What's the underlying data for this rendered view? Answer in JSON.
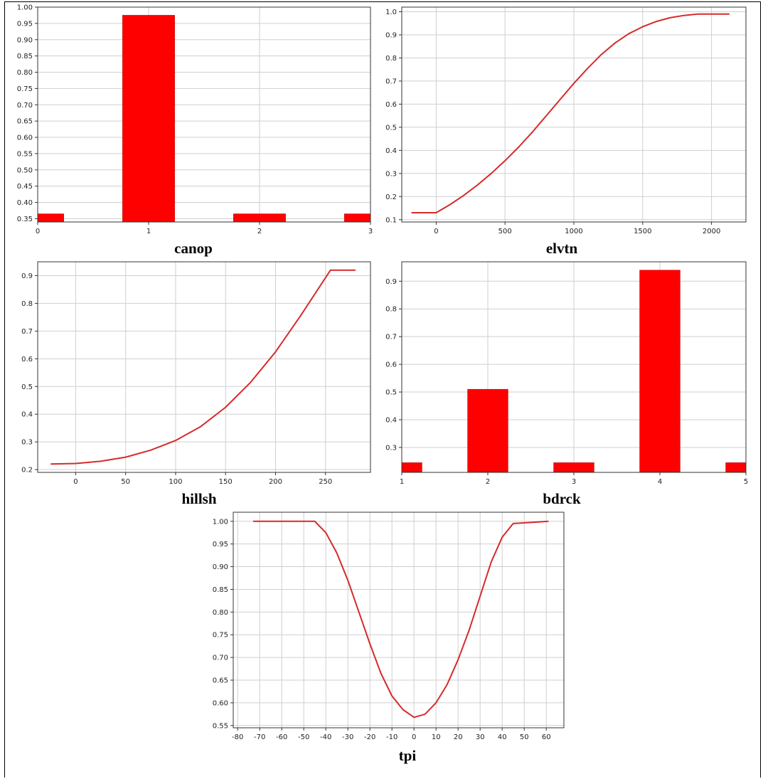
{
  "colors": {
    "series": "#ff0000",
    "line": "#d62a2a",
    "grid": "#cfcfcf",
    "axis": "#333333"
  },
  "chart_data": [
    {
      "id": "canop",
      "type": "bar",
      "xlabel": "canop",
      "categories": [
        "0",
        "1",
        "2",
        "3"
      ],
      "values": [
        0.365,
        0.975,
        0.365,
        0.365
      ],
      "ylim": [
        0.34,
        1.0
      ],
      "yticks": [
        0.35,
        0.4,
        0.45,
        0.5,
        0.55,
        0.6,
        0.65,
        0.7,
        0.75,
        0.8,
        0.85,
        0.9,
        0.95,
        1.0
      ],
      "yticklabels": [
        "0.35",
        "0.40",
        "0.45",
        "0.50",
        "0.55",
        "0.60",
        "0.65",
        "0.70",
        "0.75",
        "0.80",
        "0.85",
        "0.90",
        "0.95",
        "1.00"
      ],
      "grid": true
    },
    {
      "id": "elvtn",
      "type": "line",
      "xlabel": "elvtn",
      "x": [
        -180,
        0,
        100,
        200,
        300,
        400,
        500,
        600,
        700,
        800,
        900,
        1000,
        1100,
        1200,
        1300,
        1400,
        1500,
        1600,
        1700,
        1800,
        1900,
        2000,
        2130
      ],
      "y": [
        0.13,
        0.13,
        0.165,
        0.205,
        0.25,
        0.3,
        0.355,
        0.415,
        0.48,
        0.55,
        0.62,
        0.69,
        0.755,
        0.815,
        0.865,
        0.905,
        0.935,
        0.958,
        0.974,
        0.984,
        0.99,
        0.99,
        0.99
      ],
      "xlim": [
        -250,
        2250
      ],
      "ylim": [
        0.09,
        1.02
      ],
      "xticks": [
        0,
        500,
        1000,
        1500,
        2000
      ],
      "xticklabels": [
        "0",
        "500",
        "1000",
        "1500",
        "2000"
      ],
      "yticks": [
        0.1,
        0.2,
        0.3,
        0.4,
        0.5,
        0.6,
        0.7,
        0.8,
        0.9,
        1.0
      ],
      "yticklabels": [
        "0.1",
        "0.2",
        "0.3",
        "0.4",
        "0.5",
        "0.6",
        "0.7",
        "0.8",
        "0.9",
        "1.0"
      ],
      "grid": true
    },
    {
      "id": "hillsh",
      "type": "line",
      "xlabel": "hillsh",
      "x": [
        -25,
        0,
        25,
        50,
        75,
        100,
        125,
        150,
        175,
        200,
        225,
        255,
        280
      ],
      "y": [
        0.22,
        0.222,
        0.23,
        0.245,
        0.27,
        0.305,
        0.355,
        0.425,
        0.515,
        0.625,
        0.755,
        0.92,
        0.92
      ],
      "xlim": [
        -38,
        295
      ],
      "ylim": [
        0.19,
        0.95
      ],
      "xticks": [
        0,
        50,
        100,
        150,
        200,
        250
      ],
      "xticklabels": [
        "0",
        "50",
        "100",
        "150",
        "200",
        "250"
      ],
      "yticks": [
        0.2,
        0.3,
        0.4,
        0.5,
        0.6,
        0.7,
        0.8,
        0.9
      ],
      "yticklabels": [
        "0.2",
        "0.3",
        "0.4",
        "0.5",
        "0.6",
        "0.7",
        "0.8",
        "0.9"
      ],
      "grid": true
    },
    {
      "id": "bdrck",
      "type": "bar",
      "xlabel": "bdrck",
      "categories": [
        "1",
        "2",
        "3",
        "4",
        "5"
      ],
      "values": [
        0.245,
        0.51,
        0.245,
        0.94,
        0.245
      ],
      "ylim": [
        0.21,
        0.97
      ],
      "yticks": [
        0.3,
        0.4,
        0.5,
        0.6,
        0.7,
        0.8,
        0.9
      ],
      "yticklabels": [
        "0.3",
        "0.4",
        "0.5",
        "0.6",
        "0.7",
        "0.8",
        "0.9"
      ],
      "grid": true
    },
    {
      "id": "tpi",
      "type": "line",
      "xlabel": "tpi",
      "x": [
        -73,
        -45,
        -40,
        -35,
        -30,
        -25,
        -20,
        -15,
        -10,
        -5,
        0,
        5,
        10,
        15,
        20,
        25,
        30,
        35,
        40,
        45,
        61
      ],
      "y": [
        1.0,
        1.0,
        0.975,
        0.93,
        0.87,
        0.8,
        0.73,
        0.665,
        0.615,
        0.585,
        0.568,
        0.575,
        0.6,
        0.64,
        0.695,
        0.76,
        0.835,
        0.91,
        0.965,
        0.995,
        1.0
      ],
      "xlim": [
        -82,
        68
      ],
      "ylim": [
        0.545,
        1.02
      ],
      "xticks": [
        -80,
        -70,
        -60,
        -50,
        -40,
        -30,
        -20,
        -10,
        0,
        10,
        20,
        30,
        40,
        50,
        60
      ],
      "xticklabels": [
        "-80",
        "-70",
        "-60",
        "-50",
        "-40",
        "-30",
        "-20",
        "-10",
        "0",
        "10",
        "20",
        "30",
        "40",
        "50",
        "60"
      ],
      "yticks": [
        0.55,
        0.6,
        0.65,
        0.7,
        0.75,
        0.8,
        0.85,
        0.9,
        0.95,
        1.0
      ],
      "yticklabels": [
        "0.55",
        "0.60",
        "0.65",
        "0.70",
        "0.75",
        "0.80",
        "0.85",
        "0.90",
        "0.95",
        "1.00"
      ],
      "grid": true
    }
  ]
}
